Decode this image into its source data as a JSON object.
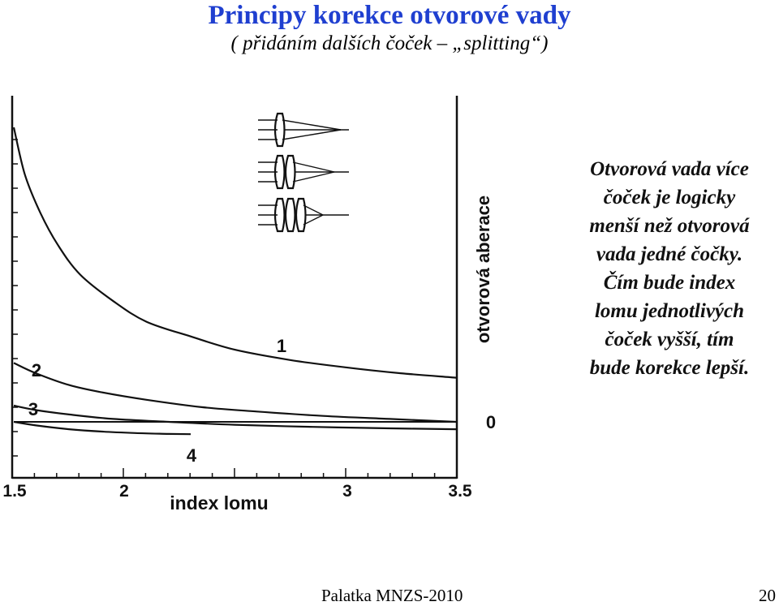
{
  "slide": {
    "title": "Principy korekce otvorové vady",
    "subtitle": "( přidáním dalších čoček – „splitting“)",
    "description_lines": [
      "Otvorová vada více",
      "čoček je logicky",
      "menší než otvorová",
      "vada jedné čočky.",
      "Čím bude index",
      "lomu jednotlivých",
      "čoček vyšší, tím",
      "bude korekce lepší."
    ],
    "footer_left": "Palatka   MNZS-2010",
    "page_number": "20"
  },
  "chart_data": {
    "type": "line",
    "xlabel": "index lomu",
    "ylabel": "otvorová aberace",
    "x_ticks": [
      "1.5",
      "2",
      "3",
      "3.5"
    ],
    "zero_label": "0",
    "series": [
      {
        "name": "1",
        "x": [
          1.5,
          1.55,
          1.62,
          1.7,
          1.8,
          1.95,
          2.1,
          2.3,
          2.5,
          2.75,
          3.0,
          3.25,
          3.5
        ],
        "y": [
          1.0,
          0.84,
          0.71,
          0.6,
          0.5,
          0.41,
          0.34,
          0.29,
          0.245,
          0.21,
          0.185,
          0.165,
          0.15
        ]
      },
      {
        "name": "2",
        "x": [
          1.5,
          1.6,
          1.75,
          1.9,
          2.1,
          2.35,
          2.6,
          2.9,
          3.2,
          3.5
        ],
        "y": [
          0.2,
          0.165,
          0.125,
          0.1,
          0.075,
          0.05,
          0.035,
          0.02,
          0.01,
          0.0
        ]
      },
      {
        "name": "3",
        "x": [
          1.5,
          1.6,
          1.75,
          1.95,
          2.2,
          2.5,
          2.85,
          3.2,
          3.5
        ],
        "y": [
          0.055,
          0.04,
          0.025,
          0.01,
          0.0,
          -0.01,
          -0.017,
          -0.022,
          -0.025
        ]
      },
      {
        "name": "4",
        "x": [
          1.5,
          1.6,
          1.75,
          1.9,
          2.05,
          2.2,
          2.3
        ],
        "y": [
          0.0,
          -0.012,
          -0.025,
          -0.033,
          -0.038,
          -0.041,
          -0.042
        ]
      }
    ],
    "zero_line": {
      "x": [
        1.5,
        3.5
      ],
      "y": [
        0.0,
        0.0
      ]
    },
    "xlim": [
      1.5,
      3.5
    ],
    "grid": false,
    "inset_lens_groups": [
      1,
      2,
      3
    ]
  }
}
